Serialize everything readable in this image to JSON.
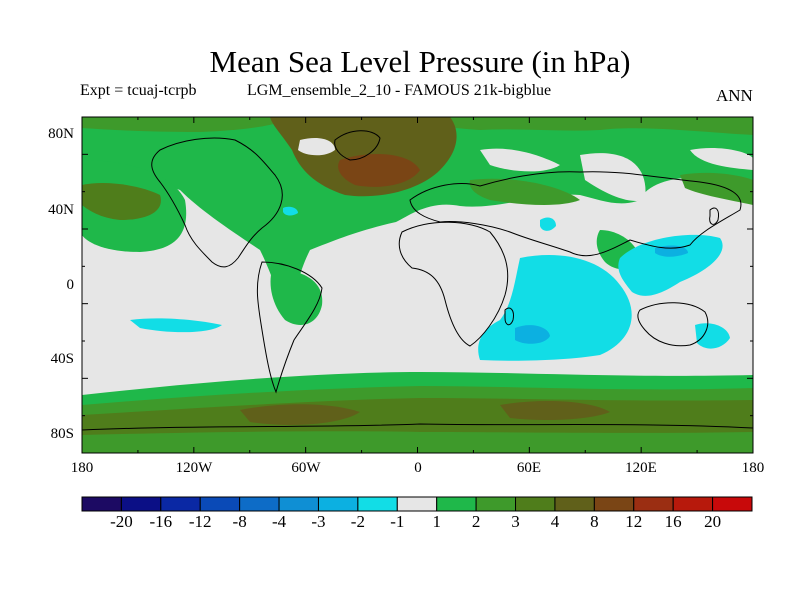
{
  "title": "Mean Sea Level Pressure (in hPa)",
  "subtitle_left": "Expt = tcuaj-tcrpb",
  "subtitle_mid": "LGM_ensemble_2_10 - FAMOUS 21k-bigblue",
  "subtitle_right": "ANN",
  "y_ticks": [
    "80N",
    "40N",
    "0",
    "40S",
    "80S"
  ],
  "x_ticks": [
    "180",
    "120W",
    "60W",
    "0",
    "60E",
    "120E",
    "180"
  ],
  "colorbar": {
    "labels": [
      "-20",
      "-16",
      "-12",
      "-8",
      "-4",
      "-3",
      "-2",
      "-1",
      "1",
      "2",
      "3",
      "4",
      "8",
      "12",
      "16",
      "20"
    ],
    "colors": [
      "#1c0a63",
      "#0b0f86",
      "#0a28a4",
      "#0a4ab7",
      "#0d6cc7",
      "#0f8fd4",
      "#0cb0e1",
      "#12dde6",
      "#e6e6e6",
      "#1fb84a",
      "#3e9a2b",
      "#4f7d1b",
      "#60601a",
      "#7a4515",
      "#9b2e12",
      "#b7190c",
      "#c8090a"
    ]
  }
}
